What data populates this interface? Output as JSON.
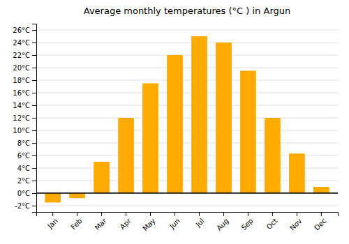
{
  "chart_data": {
    "type": "bar",
    "title": "Average monthly temperatures (°C ) in Argun",
    "categories": [
      "Jan",
      "Feb",
      "Mar",
      "Apr",
      "May",
      "Jun",
      "Jul",
      "Aug",
      "Sep",
      "Oct",
      "Nov",
      "Dec"
    ],
    "values": [
      -1.5,
      -0.8,
      5.0,
      12.0,
      17.5,
      22.0,
      25.0,
      24.0,
      19.5,
      12.0,
      6.3,
      1.0
    ],
    "color": "#FFAA00",
    "ylim": [
      -3,
      27
    ],
    "yticks": [
      {
        "value": -2,
        "label": "-2°C"
      },
      {
        "value": 0,
        "label": "0°C"
      },
      {
        "value": 2,
        "label": "2°C"
      },
      {
        "value": 4,
        "label": "4°C"
      },
      {
        "value": 6,
        "label": "6°C"
      },
      {
        "value": 8,
        "label": "8°C"
      },
      {
        "value": 10,
        "label": "10°C"
      },
      {
        "value": 12,
        "label": "12°C"
      },
      {
        "value": 14,
        "label": "14°C"
      },
      {
        "value": 16,
        "label": "16°C"
      },
      {
        "value": 18,
        "label": "18°C"
      },
      {
        "value": 20,
        "label": "20°C"
      },
      {
        "value": 22,
        "label": "22°C"
      },
      {
        "value": 24,
        "label": "24°C"
      },
      {
        "value": 26,
        "label": "26°C"
      }
    ],
    "grid": true
  }
}
